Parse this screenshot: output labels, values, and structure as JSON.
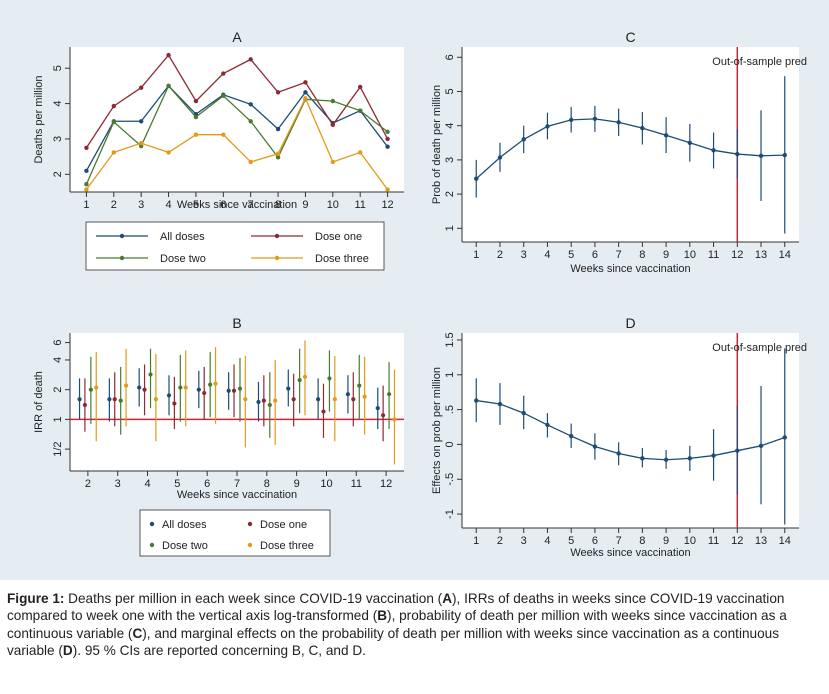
{
  "colors": {
    "all_doses": "#1e4c74",
    "dose_one": "#8c2a33",
    "dose_two": "#4a7a2e",
    "dose_three": "#e29a18",
    "ref_line": "#c6283a",
    "panel_bg": "#e6edf2",
    "plot_bg": "#ffffff"
  },
  "chart_data": [
    {
      "id": "A",
      "type": "line",
      "title": "A",
      "xlabel": "Weeks since vaccination",
      "ylabel": "Deaths per million",
      "x": [
        1,
        2,
        3,
        4,
        5,
        6,
        7,
        8,
        9,
        10,
        11,
        12
      ],
      "xticks": [
        1,
        2,
        3,
        4,
        5,
        6,
        7,
        8,
        9,
        10,
        11,
        12
      ],
      "yticks": [
        2,
        3,
        4,
        5
      ],
      "ylim": [
        1.5,
        5.6
      ],
      "grid": false,
      "legend_position": "below",
      "series": [
        {
          "name": "All doses",
          "values": [
            2.1,
            3.5,
            3.5,
            4.5,
            3.7,
            4.25,
            3.98,
            3.28,
            4.32,
            3.45,
            3.8,
            2.78
          ]
        },
        {
          "name": "Dose one",
          "values": [
            2.75,
            3.93,
            4.45,
            5.37,
            4.07,
            4.85,
            5.25,
            4.32,
            4.6,
            3.4,
            4.47,
            3.0
          ]
        },
        {
          "name": "Dose two",
          "values": [
            1.72,
            3.48,
            2.8,
            4.5,
            3.62,
            4.22,
            3.5,
            2.48,
            4.12,
            4.07,
            3.8,
            3.2
          ]
        },
        {
          "name": "Dose three",
          "values": [
            1.57,
            2.62,
            2.88,
            2.62,
            3.12,
            3.12,
            2.35,
            2.58,
            4.15,
            2.35,
            2.62,
            1.57
          ]
        }
      ]
    },
    {
      "id": "B",
      "type": "scatter",
      "title": "B",
      "xlabel": "Weeks since vaccination",
      "ylabel": "IRR of death",
      "x": [
        2,
        3,
        4,
        5,
        6,
        7,
        8,
        9,
        10,
        11,
        12
      ],
      "xticks": [
        2,
        3,
        4,
        5,
        6,
        7,
        8,
        9,
        10,
        11,
        12
      ],
      "yticks": [
        "1/2",
        "1",
        "2",
        "4",
        "6"
      ],
      "y_scale": "log2",
      "ylim": [
        0.3,
        7.5
      ],
      "reference_line": 1,
      "grid": false,
      "legend_position": "below",
      "series": [
        {
          "name": "All doses",
          "values": [
            1.6,
            1.6,
            2.1,
            1.75,
            2.0,
            1.95,
            1.5,
            2.05,
            1.6,
            1.8,
            1.3
          ],
          "lower": [
            1.0,
            0.95,
            1.35,
            1.1,
            1.3,
            1.25,
            0.95,
            1.35,
            1.0,
            1.15,
            0.8
          ],
          "upper": [
            2.6,
            2.6,
            3.3,
            2.8,
            3.1,
            3.0,
            2.4,
            3.2,
            2.6,
            2.8,
            2.1
          ]
        },
        {
          "name": "Dose one",
          "values": [
            1.4,
            1.6,
            2.0,
            1.45,
            1.85,
            1.95,
            1.55,
            1.6,
            1.2,
            1.6,
            1.1
          ],
          "lower": [
            0.75,
            0.85,
            1.1,
            0.8,
            1.0,
            1.05,
            0.85,
            0.85,
            0.65,
            0.85,
            0.6
          ],
          "upper": [
            2.6,
            3.0,
            3.6,
            2.7,
            3.4,
            3.6,
            2.8,
            2.9,
            2.3,
            3.0,
            2.2
          ]
        },
        {
          "name": "Dose two",
          "values": [
            2.0,
            1.55,
            2.85,
            2.1,
            2.25,
            2.05,
            1.4,
            2.5,
            2.6,
            2.2,
            1.8
          ],
          "lower": [
            0.9,
            0.7,
            1.3,
            0.95,
            1.05,
            0.95,
            0.65,
            1.15,
            1.2,
            1.0,
            0.8
          ],
          "upper": [
            4.3,
            3.4,
            5.2,
            4.5,
            4.8,
            4.2,
            3.0,
            5.2,
            5.0,
            4.5,
            3.8
          ]
        },
        {
          "name": "Dose three",
          "values": [
            2.1,
            2.2,
            1.6,
            2.1,
            2.3,
            1.6,
            1.55,
            2.7,
            1.6,
            1.7,
            1.0
          ],
          "lower": [
            0.6,
            0.85,
            0.6,
            0.85,
            0.9,
            0.52,
            0.55,
            1.1,
            0.6,
            0.7,
            0.35
          ],
          "upper": [
            4.8,
            5.2,
            4.6,
            5.0,
            5.4,
            4.4,
            4.0,
            6.3,
            4.4,
            4.3,
            3.2
          ]
        }
      ]
    },
    {
      "id": "C",
      "type": "line",
      "title": "C",
      "xlabel": "Weeks since vaccination",
      "ylabel": "Prob of death per million",
      "x": [
        1,
        2,
        3,
        4,
        5,
        6,
        7,
        8,
        9,
        10,
        11,
        12,
        13,
        14
      ],
      "xticks": [
        1,
        2,
        3,
        4,
        5,
        6,
        7,
        8,
        9,
        10,
        11,
        12,
        13,
        14
      ],
      "yticks": [
        1,
        2,
        3,
        4,
        5,
        6
      ],
      "ylim": [
        0.6,
        6.3
      ],
      "vertical_line_x": 12,
      "annotation": "Out-of-sample pred",
      "grid": false,
      "series": [
        {
          "values": [
            2.45,
            3.07,
            3.6,
            3.98,
            4.17,
            4.2,
            4.1,
            3.93,
            3.72,
            3.5,
            3.28,
            3.17,
            3.12,
            3.14
          ],
          "lower": [
            1.9,
            2.65,
            3.2,
            3.6,
            3.8,
            3.82,
            3.7,
            3.45,
            3.2,
            2.95,
            2.75,
            2.45,
            1.8,
            0.85
          ],
          "upper": [
            3.0,
            3.5,
            4.0,
            4.38,
            4.55,
            4.58,
            4.5,
            4.4,
            4.25,
            4.05,
            3.8,
            3.9,
            4.45,
            5.45
          ]
        }
      ]
    },
    {
      "id": "D",
      "type": "line",
      "title": "D",
      "xlabel": "Weeks since vaccination",
      "ylabel": "Effects on prob per million",
      "x": [
        1,
        2,
        3,
        4,
        5,
        6,
        7,
        8,
        9,
        10,
        11,
        12,
        13,
        14
      ],
      "xticks": [
        1,
        2,
        3,
        4,
        5,
        6,
        7,
        8,
        9,
        10,
        11,
        12,
        13,
        14
      ],
      "yticks": [
        -1,
        -0.5,
        0,
        0.5,
        1,
        1.5
      ],
      "ytick_labels": [
        "-1",
        "-.5",
        "0",
        ".5",
        "1",
        "1.5"
      ],
      "ylim": [
        -1.2,
        1.6
      ],
      "vertical_line_x": 12,
      "annotation": "Out-of-sample pred",
      "grid": false,
      "series": [
        {
          "values": [
            0.63,
            0.58,
            0.45,
            0.28,
            0.12,
            -0.03,
            -0.13,
            -0.2,
            -0.22,
            -0.2,
            -0.16,
            -0.09,
            -0.02,
            0.1
          ],
          "lower": [
            0.32,
            0.28,
            0.22,
            0.1,
            -0.05,
            -0.22,
            -0.3,
            -0.33,
            -0.35,
            -0.38,
            -0.52,
            -0.72,
            -0.86,
            -1.15
          ],
          "upper": [
            0.95,
            0.88,
            0.7,
            0.45,
            0.3,
            0.16,
            0.03,
            -0.05,
            -0.08,
            -0.02,
            0.22,
            0.55,
            0.84,
            1.38
          ]
        }
      ]
    }
  ],
  "legends": {
    "A": [
      "All doses",
      "Dose one",
      "Dose two",
      "Dose three"
    ],
    "B": [
      "All doses",
      "Dose one",
      "Dose two",
      "Dose three"
    ]
  },
  "caption": {
    "label": "Figure 1:",
    "segments": [
      {
        "t": " Deaths per million in each week since COVID-19 vaccination (",
        "b": false
      },
      {
        "t": "A",
        "b": true
      },
      {
        "t": "), IRRs of deaths in weeks since COVID-19 vaccination compared to week one with the vertical axis log-transformed (",
        "b": false
      },
      {
        "t": "B",
        "b": true
      },
      {
        "t": "), probability of death per million with weeks since vaccination as a continuous variable (",
        "b": false
      },
      {
        "t": "C",
        "b": true
      },
      {
        "t": "), and marginal effects on the probability of death per million with weeks since vaccination as a continuous variable (",
        "b": false
      },
      {
        "t": "D",
        "b": true
      },
      {
        "t": "). 95 % CIs are reported concerning B, C, and D.",
        "b": false
      }
    ]
  }
}
